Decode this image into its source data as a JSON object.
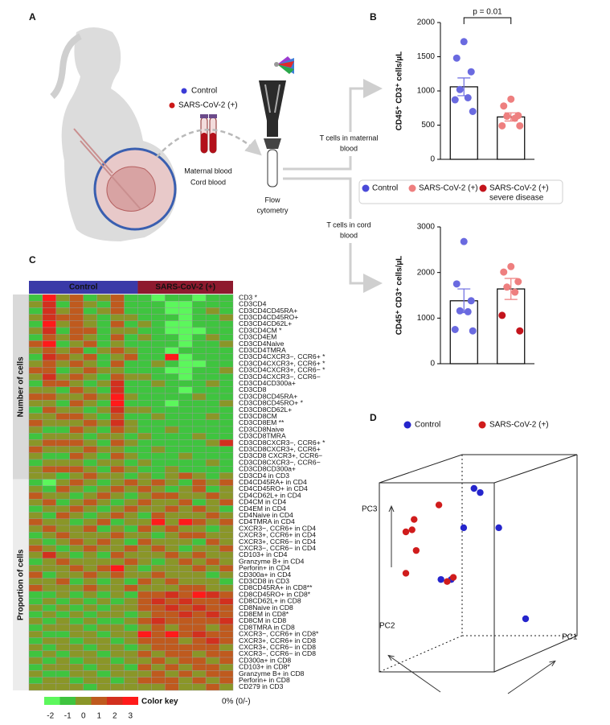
{
  "panel_labels": [
    "A",
    "B",
    "C",
    "D"
  ],
  "panel_a": {
    "legend": [
      {
        "name": "Control",
        "color": "#3b3bd6"
      },
      {
        "name": "SARS-CoV-2 (+)",
        "color": "#cc1818"
      }
    ],
    "sample_labels": [
      "Maternal blood",
      "Cord blood"
    ],
    "instrument": [
      "Flow",
      "cytometry"
    ],
    "routes": [
      [
        "T cells in maternal",
        "blood"
      ],
      [
        "T cells in cord",
        "blood"
      ]
    ]
  },
  "legend_b": [
    {
      "name": [
        "Control"
      ],
      "color": "#4a4ad8"
    },
    {
      "name": [
        "SARS-CoV-2 (+)"
      ],
      "color": "#ee7f7f"
    },
    {
      "name": [
        "SARS-CoV-2 (+)",
        "severe disease"
      ],
      "color": "#c3141c"
    }
  ],
  "chart_data": [
    {
      "type": "bar",
      "ylabel": "CD45⁺ CD3⁺ cells/µL",
      "categories": [
        null,
        null
      ],
      "values": [
        1060,
        620
      ],
      "errors": [
        130,
        60
      ],
      "ylim": [
        0,
        2000
      ],
      "yticks": [
        0,
        500,
        1000,
        1500,
        2000
      ],
      "annotation": "p = 0.01",
      "points": [
        {
          "values": [
            1720,
            1480,
            1280,
            1020,
            900,
            870,
            700
          ],
          "colors": [
            "#6a6ae0",
            "#6a6ae0",
            "#6a6ae0",
            "#6a6ae0",
            "#6a6ae0",
            "#6a6ae0",
            "#6a6ae0"
          ]
        },
        {
          "values": [
            880,
            780,
            640,
            630,
            600,
            490,
            490
          ],
          "colors": [
            "#ee7f7f",
            "#ee7f7f",
            "#ee7f7f",
            "#ee7f7f",
            "#ee7f7f",
            "#ee7f7f",
            "#ee7f7f"
          ]
        }
      ]
    },
    {
      "type": "bar",
      "ylabel": "CD45⁺ CD3⁺ cells/µL",
      "categories": [
        null,
        null
      ],
      "values": [
        1380,
        1640
      ],
      "errors": [
        260,
        230
      ],
      "ylim": [
        0,
        3000
      ],
      "yticks": [
        0,
        1000,
        2000,
        3000
      ],
      "points": [
        {
          "values": [
            2680,
            1750,
            1380,
            1160,
            1140,
            750,
            720
          ],
          "colors": [
            "#6a6ae0",
            "#6a6ae0",
            "#6a6ae0",
            "#6a6ae0",
            "#6a6ae0",
            "#6a6ae0",
            "#6a6ae0"
          ]
        },
        {
          "values": [
            2130,
            2010,
            1800,
            1680,
            1570,
            1060,
            720
          ],
          "colors": [
            "#ee7f7f",
            "#ee7f7f",
            "#ee7f7f",
            "#ee7f7f",
            "#ee7f7f",
            "#c3141c",
            "#c3141c"
          ]
        }
      ]
    },
    {
      "type": "heatmap",
      "column_groups": [
        {
          "label": "Control",
          "columns": 8,
          "color": "#3a3aa8"
        },
        {
          "label": "SARS-CoV-2 (+)",
          "columns": 7,
          "color": "#8e1a2e"
        }
      ],
      "row_groups": [
        {
          "label": "Number of cells",
          "rows": 28,
          "color": "#d9d9d9"
        },
        {
          "label": "Proportion of cells",
          "rows": 32,
          "color": "#ececec"
        }
      ],
      "rows": [
        "CD3  *",
        "CD3CD4",
        "CD3CD4CD45RA+",
        "CD3CD4CD45RO+",
        "CD3CD4CD62L+",
        "CD3CD4CM  *",
        "CD3CD4EM",
        "CD3CD4Naive",
        "CD3CD4TMRA",
        "CD3CD4CXCR3−, CCR6+  *",
        "CD3CD4CXCR3+, CCR6+  *",
        "CD3CD4CXCR3+, CCR6−  *",
        "CD3CD4CXCR3−, CCR6−",
        "CD3CD4CD300a+",
        "CD3CD8",
        "CD3CD8CD45RA+",
        "CD3CD8CD45RO+  *",
        "CD3CD8CD62L+",
        "CD3CD8CM",
        "CD3CD8EM  **",
        "CD3CD8Naive",
        "CD3CD8TMRA",
        "CD3CD8CXCR3−, CCR6+  *",
        "CD3CD8CXCR3+, CCR6+",
        "CD3CD8 CXCR3+, CCR6−",
        "CD3CD8CXCR3−, CCR6−",
        "CD3CD8CD300a+",
        "CD3CD4 in CD3",
        "CD4CD45RA+ in CD4",
        "CD4CD45RO+ in CD4",
        "CD4CD62L+ in CD4",
        "CD4CM in CD4",
        "CD4EM in CD4",
        "CD4Naive in CD4",
        "CD4TMRA in CD4",
        "CXCR3−, CCR6+ in CD4",
        "CXCR3+, CCR6+ in CD4",
        "CXCR3+, CCR6− in CD4",
        "CXCR3−, CCR6− in CD4",
        "CD103+ in CD4",
        "Granzyme B+ in CD4",
        "Perforin+ in CD4",
        "CD300a+ in CD4",
        "CD3CD8 in CD3",
        "CD8CD45RA+ in CD8**",
        "CD8CD45RO+ in CD8*",
        "CD8CD62L+ in CD8",
        "CD8Naive in CD8",
        "CD8EM in CD8*",
        "CD8CM in CD8",
        "CD8TMRA in CD8",
        "CXCR3−, CCR6+ in CD8*",
        "CXCR3+, CCR6+ in CD8",
        "CXCR3+, CCR6− in CD8",
        "CXCR3−, CCR6− in CD8",
        "CD300a+ in CD8",
        "CD103+ in CD8*",
        "Granzyme B+ in CD8",
        "Perforin+ in CD8",
        "CD279 in CD3"
      ],
      "values": [
        [
          -1,
          3,
          0,
          1,
          -1,
          0,
          1,
          -1,
          -1,
          -2,
          -1,
          -1,
          -2,
          -1,
          -1
        ],
        [
          0,
          2,
          -1,
          1,
          0,
          -1,
          1,
          -1,
          -1,
          -1,
          -2,
          -2,
          -1,
          -1,
          -1
        ],
        [
          -1,
          2,
          0,
          1,
          -1,
          0,
          1,
          -1,
          -1,
          -1,
          -2,
          -2,
          -1,
          0,
          -1
        ],
        [
          0,
          2,
          1,
          1,
          0,
          -1,
          0,
          0,
          -1,
          -1,
          -1,
          -2,
          -1,
          -1,
          0
        ],
        [
          -1,
          3,
          0,
          1,
          0,
          -1,
          1,
          -1,
          0,
          -1,
          -2,
          -2,
          -1,
          -1,
          -1
        ],
        [
          0,
          2,
          -1,
          1,
          1,
          -1,
          0,
          0,
          -1,
          -1,
          -2,
          -2,
          -2,
          -1,
          -1
        ],
        [
          -1,
          1,
          0,
          1,
          0,
          -1,
          1,
          -1,
          0,
          -1,
          -1,
          -2,
          -1,
          0,
          -1
        ],
        [
          1,
          3,
          -1,
          0,
          1,
          -1,
          0,
          -1,
          -1,
          -1,
          -1,
          -2,
          -1,
          -1,
          0
        ],
        [
          0,
          1,
          0,
          1,
          -1,
          0,
          1,
          0,
          -1,
          -1,
          -2,
          -1,
          -1,
          -1,
          -1
        ],
        [
          -1,
          2,
          1,
          0,
          1,
          -1,
          0,
          1,
          -1,
          -1,
          3,
          -2,
          -1,
          -1,
          -1
        ],
        [
          0,
          1,
          0,
          1,
          0,
          -1,
          1,
          -1,
          -1,
          0,
          -1,
          -2,
          -2,
          -1,
          -1
        ],
        [
          1,
          1,
          -1,
          0,
          1,
          0,
          0,
          -1,
          -1,
          -1,
          -2,
          -2,
          -1,
          -1,
          0
        ],
        [
          0,
          2,
          0,
          1,
          0,
          -1,
          1,
          0,
          0,
          -1,
          -1,
          -2,
          -1,
          -1,
          -1
        ],
        [
          -1,
          1,
          1,
          0,
          -1,
          0,
          2,
          -1,
          -1,
          0,
          -1,
          -1,
          -1,
          0,
          -1
        ],
        [
          0,
          0,
          -1,
          1,
          0,
          -1,
          2,
          -1,
          -1,
          -1,
          -1,
          -2,
          -1,
          -1,
          -1
        ],
        [
          1,
          1,
          0,
          0,
          1,
          0,
          3,
          0,
          -1,
          -1,
          -1,
          -1,
          0,
          -1,
          -1
        ],
        [
          0,
          0,
          -1,
          1,
          0,
          -1,
          3,
          -1,
          -1,
          -1,
          -2,
          -1,
          -1,
          -1,
          0
        ],
        [
          -1,
          1,
          0,
          0,
          -1,
          0,
          2,
          0,
          0,
          -1,
          -1,
          -1,
          -1,
          -1,
          -1
        ],
        [
          0,
          0,
          1,
          1,
          0,
          -1,
          1,
          -1,
          -1,
          0,
          -1,
          -1,
          -1,
          0,
          -1
        ],
        [
          1,
          0,
          0,
          0,
          1,
          0,
          2,
          0,
          -1,
          -1,
          -1,
          -1,
          -1,
          -1,
          -1
        ],
        [
          0,
          -1,
          -1,
          1,
          0,
          -1,
          1,
          0,
          -1,
          -1,
          0,
          -1,
          -1,
          -1,
          -1
        ],
        [
          -1,
          0,
          0,
          0,
          -1,
          0,
          0,
          -1,
          0,
          -1,
          -1,
          -1,
          0,
          -1,
          -1
        ],
        [
          0,
          1,
          1,
          1,
          0,
          -1,
          1,
          0,
          -1,
          -1,
          -1,
          -1,
          -1,
          0,
          2
        ],
        [
          1,
          0,
          0,
          0,
          1,
          0,
          0,
          -1,
          -1,
          0,
          -1,
          -1,
          -1,
          -1,
          -1
        ],
        [
          0,
          -1,
          -1,
          1,
          0,
          -1,
          1,
          0,
          -1,
          -1,
          -1,
          0,
          -1,
          -1,
          -1
        ],
        [
          -1,
          0,
          0,
          0,
          -1,
          0,
          0,
          -1,
          0,
          -1,
          -1,
          -1,
          -1,
          0,
          -1
        ],
        [
          0,
          1,
          1,
          1,
          0,
          -1,
          1,
          0,
          -1,
          -1,
          0,
          -1,
          -1,
          -1,
          -1
        ],
        [
          0,
          0,
          -1,
          0,
          1,
          0,
          0,
          -1,
          0,
          -1,
          0,
          1,
          0,
          -1,
          0
        ],
        [
          -1,
          -2,
          0,
          1,
          0,
          -1,
          0,
          1,
          0,
          1,
          0,
          -1,
          1,
          0,
          1
        ],
        [
          0,
          -1,
          1,
          0,
          -1,
          0,
          1,
          0,
          1,
          0,
          -1,
          0,
          1,
          -1,
          0
        ],
        [
          1,
          0,
          0,
          -1,
          0,
          1,
          0,
          -1,
          0,
          1,
          1,
          0,
          0,
          1,
          0
        ],
        [
          0,
          1,
          -1,
          0,
          1,
          0,
          -1,
          0,
          1,
          0,
          0,
          1,
          -1,
          0,
          1
        ],
        [
          -1,
          0,
          0,
          1,
          0,
          -1,
          0,
          1,
          0,
          0,
          1,
          0,
          1,
          0,
          -1
        ],
        [
          0,
          -1,
          1,
          0,
          -1,
          0,
          1,
          0,
          -1,
          1,
          0,
          0,
          0,
          1,
          0
        ],
        [
          1,
          0,
          0,
          -1,
          0,
          1,
          -1,
          0,
          0,
          3,
          0,
          3,
          1,
          0,
          1
        ],
        [
          0,
          1,
          0,
          0,
          1,
          -1,
          0,
          -1,
          1,
          0,
          1,
          0,
          0,
          -1,
          0
        ],
        [
          -1,
          0,
          1,
          0,
          0,
          0,
          1,
          0,
          0,
          -1,
          0,
          1,
          1,
          0,
          0
        ],
        [
          0,
          -1,
          0,
          1,
          0,
          1,
          0,
          -1,
          1,
          0,
          0,
          0,
          -1,
          1,
          0
        ],
        [
          1,
          0,
          -1,
          0,
          1,
          0,
          0,
          1,
          0,
          1,
          0,
          -1,
          0,
          0,
          1
        ],
        [
          0,
          2,
          0,
          -1,
          0,
          -1,
          1,
          0,
          0,
          0,
          1,
          0,
          1,
          0,
          0
        ],
        [
          -1,
          0,
          1,
          0,
          0,
          0,
          0,
          1,
          0,
          -1,
          0,
          1,
          0,
          1,
          0
        ],
        [
          0,
          0,
          0,
          1,
          0,
          1,
          3,
          0,
          -1,
          0,
          0,
          0,
          1,
          0,
          1
        ],
        [
          1,
          -1,
          0,
          0,
          1,
          0,
          1,
          0,
          0,
          1,
          0,
          0,
          0,
          -1,
          0
        ],
        [
          0,
          0,
          1,
          -1,
          0,
          -1,
          0,
          -1,
          1,
          0,
          1,
          0,
          0,
          0,
          -1
        ],
        [
          1,
          0,
          0,
          0,
          1,
          0,
          0,
          1,
          0,
          0,
          0,
          1,
          1,
          0,
          0
        ],
        [
          -1,
          -1,
          0,
          -1,
          0,
          -1,
          0,
          -1,
          1,
          1,
          2,
          1,
          3,
          2,
          1
        ],
        [
          -1,
          0,
          -1,
          0,
          -1,
          0,
          -1,
          0,
          1,
          2,
          1,
          2,
          1,
          1,
          2
        ],
        [
          0,
          -1,
          0,
          -1,
          0,
          -1,
          0,
          0,
          1,
          1,
          2,
          1,
          2,
          1,
          1
        ],
        [
          -1,
          0,
          -1,
          0,
          -1,
          0,
          0,
          -1,
          0,
          1,
          1,
          2,
          1,
          2,
          1
        ],
        [
          0,
          -1,
          0,
          -1,
          0,
          -1,
          -1,
          0,
          1,
          2,
          1,
          1,
          1,
          1,
          2
        ],
        [
          -1,
          0,
          0,
          0,
          -1,
          0,
          0,
          -1,
          0,
          1,
          0,
          1,
          1,
          0,
          1
        ],
        [
          0,
          -1,
          -1,
          0,
          0,
          -1,
          0,
          0,
          3,
          1,
          3,
          1,
          2,
          1,
          1
        ],
        [
          -1,
          0,
          0,
          -1,
          0,
          0,
          -1,
          0,
          1,
          1,
          1,
          0,
          1,
          2,
          1
        ],
        [
          0,
          -1,
          0,
          0,
          -1,
          0,
          0,
          -1,
          0,
          1,
          1,
          1,
          1,
          1,
          0
        ],
        [
          -1,
          0,
          -1,
          0,
          0,
          -1,
          0,
          0,
          1,
          0,
          1,
          1,
          0,
          1,
          1
        ],
        [
          0,
          -1,
          0,
          -1,
          0,
          0,
          -1,
          0,
          0,
          1,
          0,
          1,
          1,
          0,
          1
        ],
        [
          -1,
          0,
          0,
          0,
          -1,
          0,
          0,
          -1,
          1,
          0,
          1,
          0,
          1,
          1,
          0
        ],
        [
          0,
          -1,
          -1,
          0,
          0,
          -1,
          0,
          0,
          0,
          1,
          0,
          1,
          0,
          1,
          1
        ],
        [
          -1,
          0,
          0,
          -1,
          0,
          0,
          -1,
          0,
          1,
          1,
          1,
          0,
          1,
          0,
          1
        ],
        [
          0,
          0,
          0,
          0,
          -1,
          0,
          0,
          0,
          0,
          0,
          1,
          0,
          0,
          1,
          0
        ]
      ],
      "color_scale": {
        "label": "Color key",
        "ticks": [
          -2,
          -1,
          0,
          1,
          2,
          3
        ],
        "colors": [
          "#5cf75c",
          "#3fc43f",
          "#8a9628",
          "#bf5a1e",
          "#d2301e",
          "#ff1a1a"
        ]
      },
      "note": "0% (0/-)"
    },
    {
      "type": "scatter",
      "axis_labels": [
        "PC1",
        "PC2",
        "PC3"
      ],
      "series": [
        {
          "name": "Control",
          "color": "#2525cc",
          "x": [
            4.9,
            5.2,
            4.4,
            6.1,
            3.3,
            3.8,
            7.4
          ],
          "y": [
            9.0,
            8.8,
            7.1,
            7.1,
            4.6,
            4.6,
            2.7
          ]
        },
        {
          "name": "SARS-CoV-2 (+)",
          "color": "#d01c1c",
          "x": [
            3.2,
            2.0,
            1.9,
            1.6,
            2.1,
            1.6,
            3.6,
            3.9
          ],
          "y": [
            8.2,
            7.5,
            7.0,
            6.9,
            6.0,
            4.9,
            4.5,
            4.7
          ]
        }
      ]
    }
  ]
}
